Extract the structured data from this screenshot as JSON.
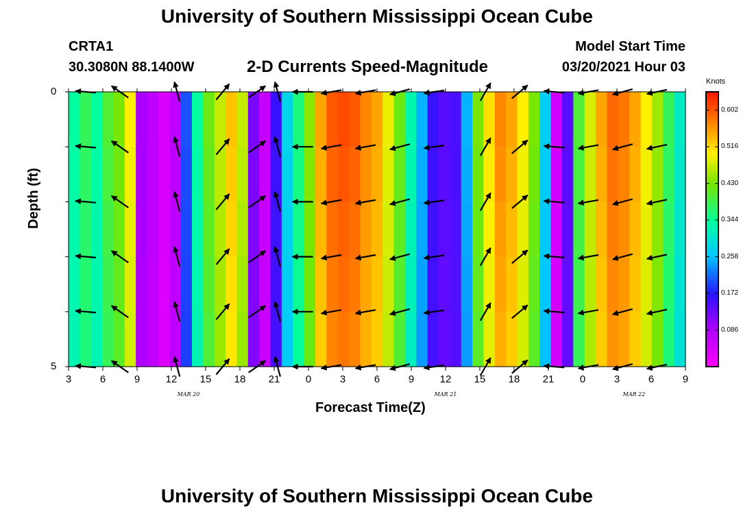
{
  "page_title": "University of Southern Mississippi Ocean Cube",
  "footer_title": "University of Southern Mississippi Ocean Cube",
  "station": {
    "id": "CRTA1",
    "location": "30.3080N 88.1400W"
  },
  "model": {
    "label": "Model Start Time",
    "start": "03/20/2021 Hour 03"
  },
  "chart_data": {
    "type": "heatmap",
    "title": "2-D Currents Speed-Magnitude",
    "xlabel": "Forecast Time(Z)",
    "ylabel": "Depth (ft)",
    "units": "Knots",
    "hours_from_start": [
      0,
      54
    ],
    "ylim": [
      0,
      5
    ],
    "y_ticks": [
      "0",
      "5"
    ],
    "x_ticks": [
      "3",
      "6",
      "9",
      "12",
      "15",
      "18",
      "21",
      "0",
      "3",
      "6",
      "9",
      "12",
      "15",
      "18",
      "21",
      "0",
      "3",
      "6",
      "9"
    ],
    "date_labels": [
      {
        "label": "MAR 20",
        "hour": 10.5
      },
      {
        "label": "MAR 21",
        "hour": 33
      },
      {
        "label": "MAR 22",
        "hour": 49.5
      }
    ],
    "colorbar_ticks": [
      "0.602",
      "0.516",
      "0.430",
      "0.344",
      "0.258",
      "0.172",
      "0.086"
    ],
    "colorbar_range": [
      0.0,
      0.645
    ],
    "speed_knots": [
      0.34,
      0.38,
      0.34,
      0.4,
      0.43,
      0.5,
      0.09,
      0.07,
      0.04,
      0.07,
      0.2,
      0.34,
      0.42,
      0.47,
      0.53,
      0.47,
      0.12,
      0.06,
      0.16,
      0.28,
      0.36,
      0.44,
      0.55,
      0.6,
      0.61,
      0.6,
      0.57,
      0.55,
      0.49,
      0.42,
      0.33,
      0.25,
      0.16,
      0.14,
      0.15,
      0.25,
      0.43,
      0.51,
      0.57,
      0.55,
      0.5,
      0.43,
      0.27,
      0.05,
      0.14,
      0.4,
      0.48,
      0.55,
      0.59,
      0.58,
      0.55,
      0.5,
      0.45,
      0.38,
      0.31
    ],
    "arrow_columns": [
      {
        "hour": 1.5,
        "angle": 185
      },
      {
        "hour": 4.5,
        "angle": 215
      },
      {
        "hour": 9.5,
        "angle": 255
      },
      {
        "hour": 13.5,
        "angle": 310
      },
      {
        "hour": 16.5,
        "angle": 325
      },
      {
        "hour": 18.3,
        "angle": 255
      },
      {
        "hour": 20.5,
        "angle": 180
      },
      {
        "hour": 23.0,
        "angle": 170
      },
      {
        "hour": 26.0,
        "angle": 170
      },
      {
        "hour": 29.0,
        "angle": 165
      },
      {
        "hour": 32.0,
        "angle": 172
      },
      {
        "hour": 36.5,
        "angle": 300
      },
      {
        "hour": 39.5,
        "angle": 320
      },
      {
        "hour": 42.5,
        "angle": 185
      },
      {
        "hour": 45.5,
        "angle": 170
      },
      {
        "hour": 48.5,
        "angle": 165
      },
      {
        "hour": 51.5,
        "angle": 168
      }
    ],
    "arrow_depth_rows": [
      0,
      1,
      2,
      3,
      4,
      5
    ]
  }
}
